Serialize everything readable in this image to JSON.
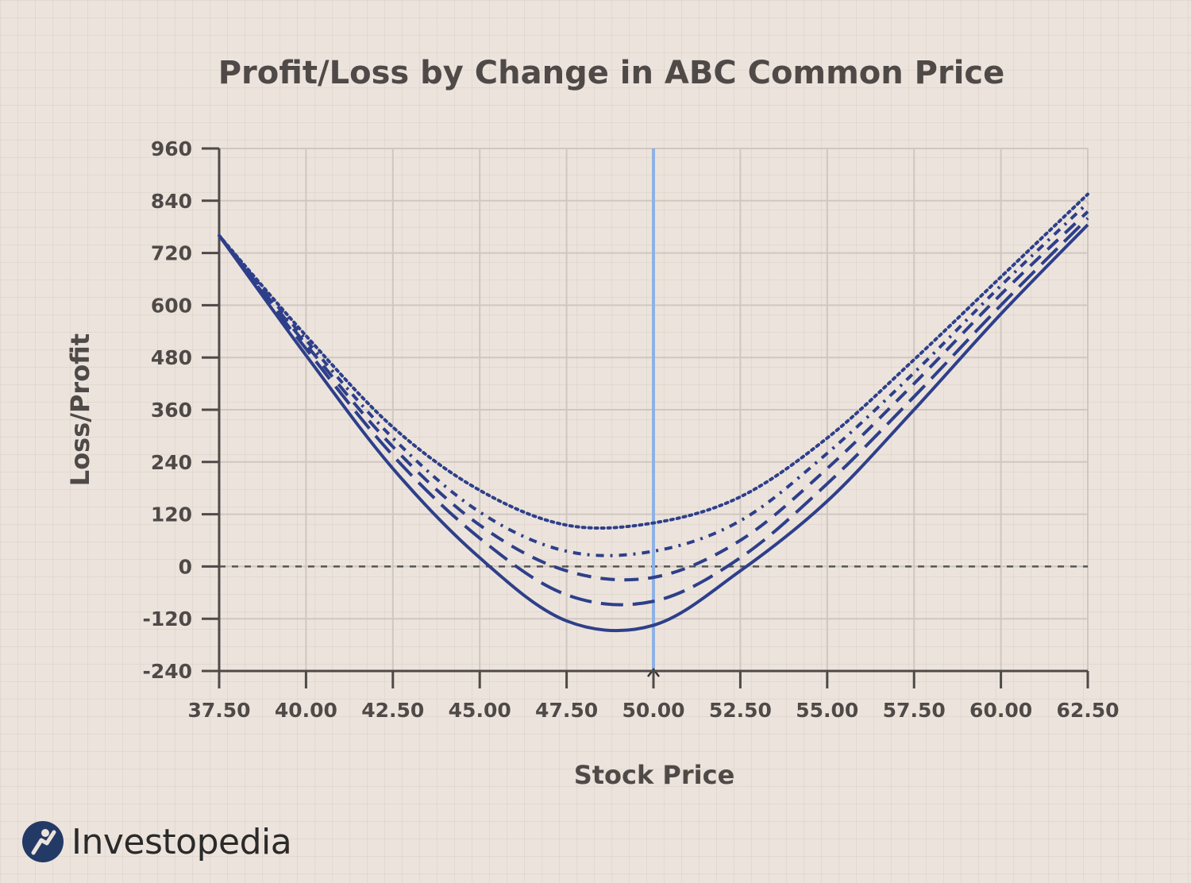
{
  "chart_data": {
    "type": "line",
    "title": "Profit/Loss by Change in ABC Common Price",
    "xlabel": "Stock Price",
    "ylabel": "Loss/Profit",
    "xlim": [
      37.5,
      62.5
    ],
    "ylim": [
      -240,
      960
    ],
    "x_ticks": [
      "37.50",
      "40.00",
      "42.50",
      "45.00",
      "47.50",
      "50.00",
      "52.50",
      "55.00",
      "57.50",
      "60.00",
      "62.50"
    ],
    "y_ticks": [
      "960",
      "840",
      "720",
      "600",
      "480",
      "360",
      "240",
      "120",
      "0",
      "-120",
      "-240"
    ],
    "grid": true,
    "reference_lines": {
      "horizontal_y": 0,
      "vertical_x": 50
    },
    "x": [
      37.5,
      40,
      42.5,
      45,
      47.5,
      50,
      52.5,
      55,
      57.5,
      60,
      62.5
    ],
    "series": [
      {
        "style": "solid",
        "color": "#2e3f8a",
        "values": [
          760,
          485,
          225,
          20,
          -125,
          -135,
          -10,
          150,
          360,
          580,
          785
        ]
      },
      {
        "style": "long-dashed",
        "color": "#2e3f8a",
        "values": [
          760,
          500,
          255,
          65,
          -65,
          -80,
          20,
          190,
          390,
          600,
          800
        ]
      },
      {
        "style": "dashed",
        "color": "#2e3f8a",
        "values": [
          760,
          510,
          275,
          95,
          -10,
          -25,
          60,
          225,
          420,
          625,
          815
        ]
      },
      {
        "style": "dash-dot",
        "color": "#2e3f8a",
        "values": [
          760,
          520,
          295,
          125,
          35,
          35,
          105,
          260,
          445,
          645,
          835
        ]
      },
      {
        "style": "dotted",
        "color": "#2e3f8a",
        "values": [
          760,
          530,
          320,
          175,
          95,
          100,
          160,
          295,
          475,
          665,
          855
        ]
      }
    ],
    "colors": {
      "background": "#ece4dc",
      "grid": "#cfc7c0",
      "axis": "#4f4a48",
      "curve": "#2e3f8a",
      "marker_line": "#8fb1e3"
    }
  },
  "logo": {
    "wordmark": "Investopedia",
    "icon": "investopedia-logo-icon"
  }
}
